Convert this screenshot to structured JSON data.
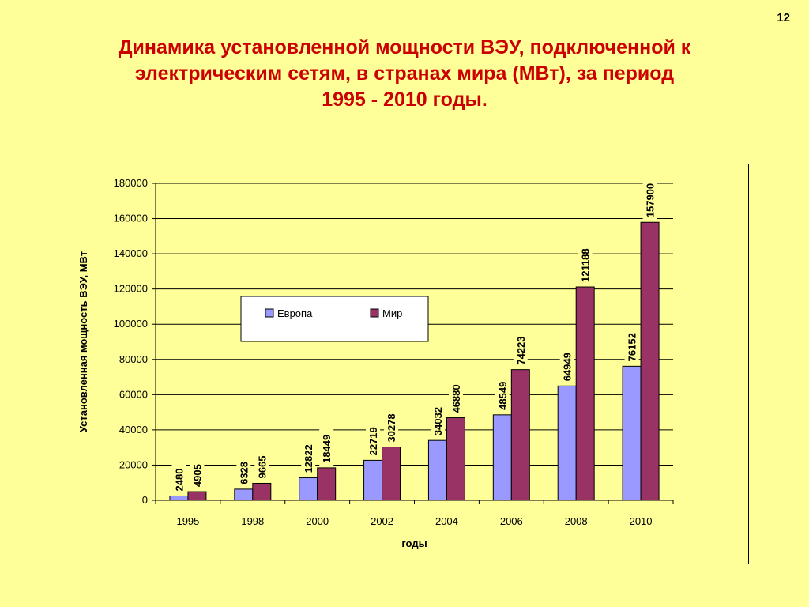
{
  "page_number": "12",
  "title_lines": [
    "Динамика установленной мощности ВЭУ, подключенной к",
    "электрическим сетям, в странах мира (МВт), за период",
    "1995 - 2010 годы."
  ],
  "colors": {
    "background": "#FFFF99",
    "title": "#CC0000",
    "europe": "#9999FF",
    "world": "#993366"
  },
  "chart_data": {
    "type": "bar",
    "categories": [
      "1995",
      "1998",
      "2000",
      "2002",
      "2004",
      "2006",
      "2008",
      "2010"
    ],
    "series": [
      {
        "name": "Европа",
        "values": [
          2480,
          6328,
          12822,
          22719,
          34032,
          48549,
          64949,
          76152
        ]
      },
      {
        "name": "Мир",
        "values": [
          4905,
          9665,
          18449,
          30278,
          46880,
          74223,
          121188,
          157900
        ]
      }
    ],
    "xlabel": "годы",
    "ylabel": "Установленная мощность ВЭУ, МВт",
    "ylim": [
      0,
      180000
    ],
    "yticks": [
      "0",
      "20000",
      "40000",
      "60000",
      "80000",
      "100000",
      "120000",
      "140000",
      "160000",
      "180000"
    ],
    "grid": true,
    "legend_position": "upper-center"
  }
}
